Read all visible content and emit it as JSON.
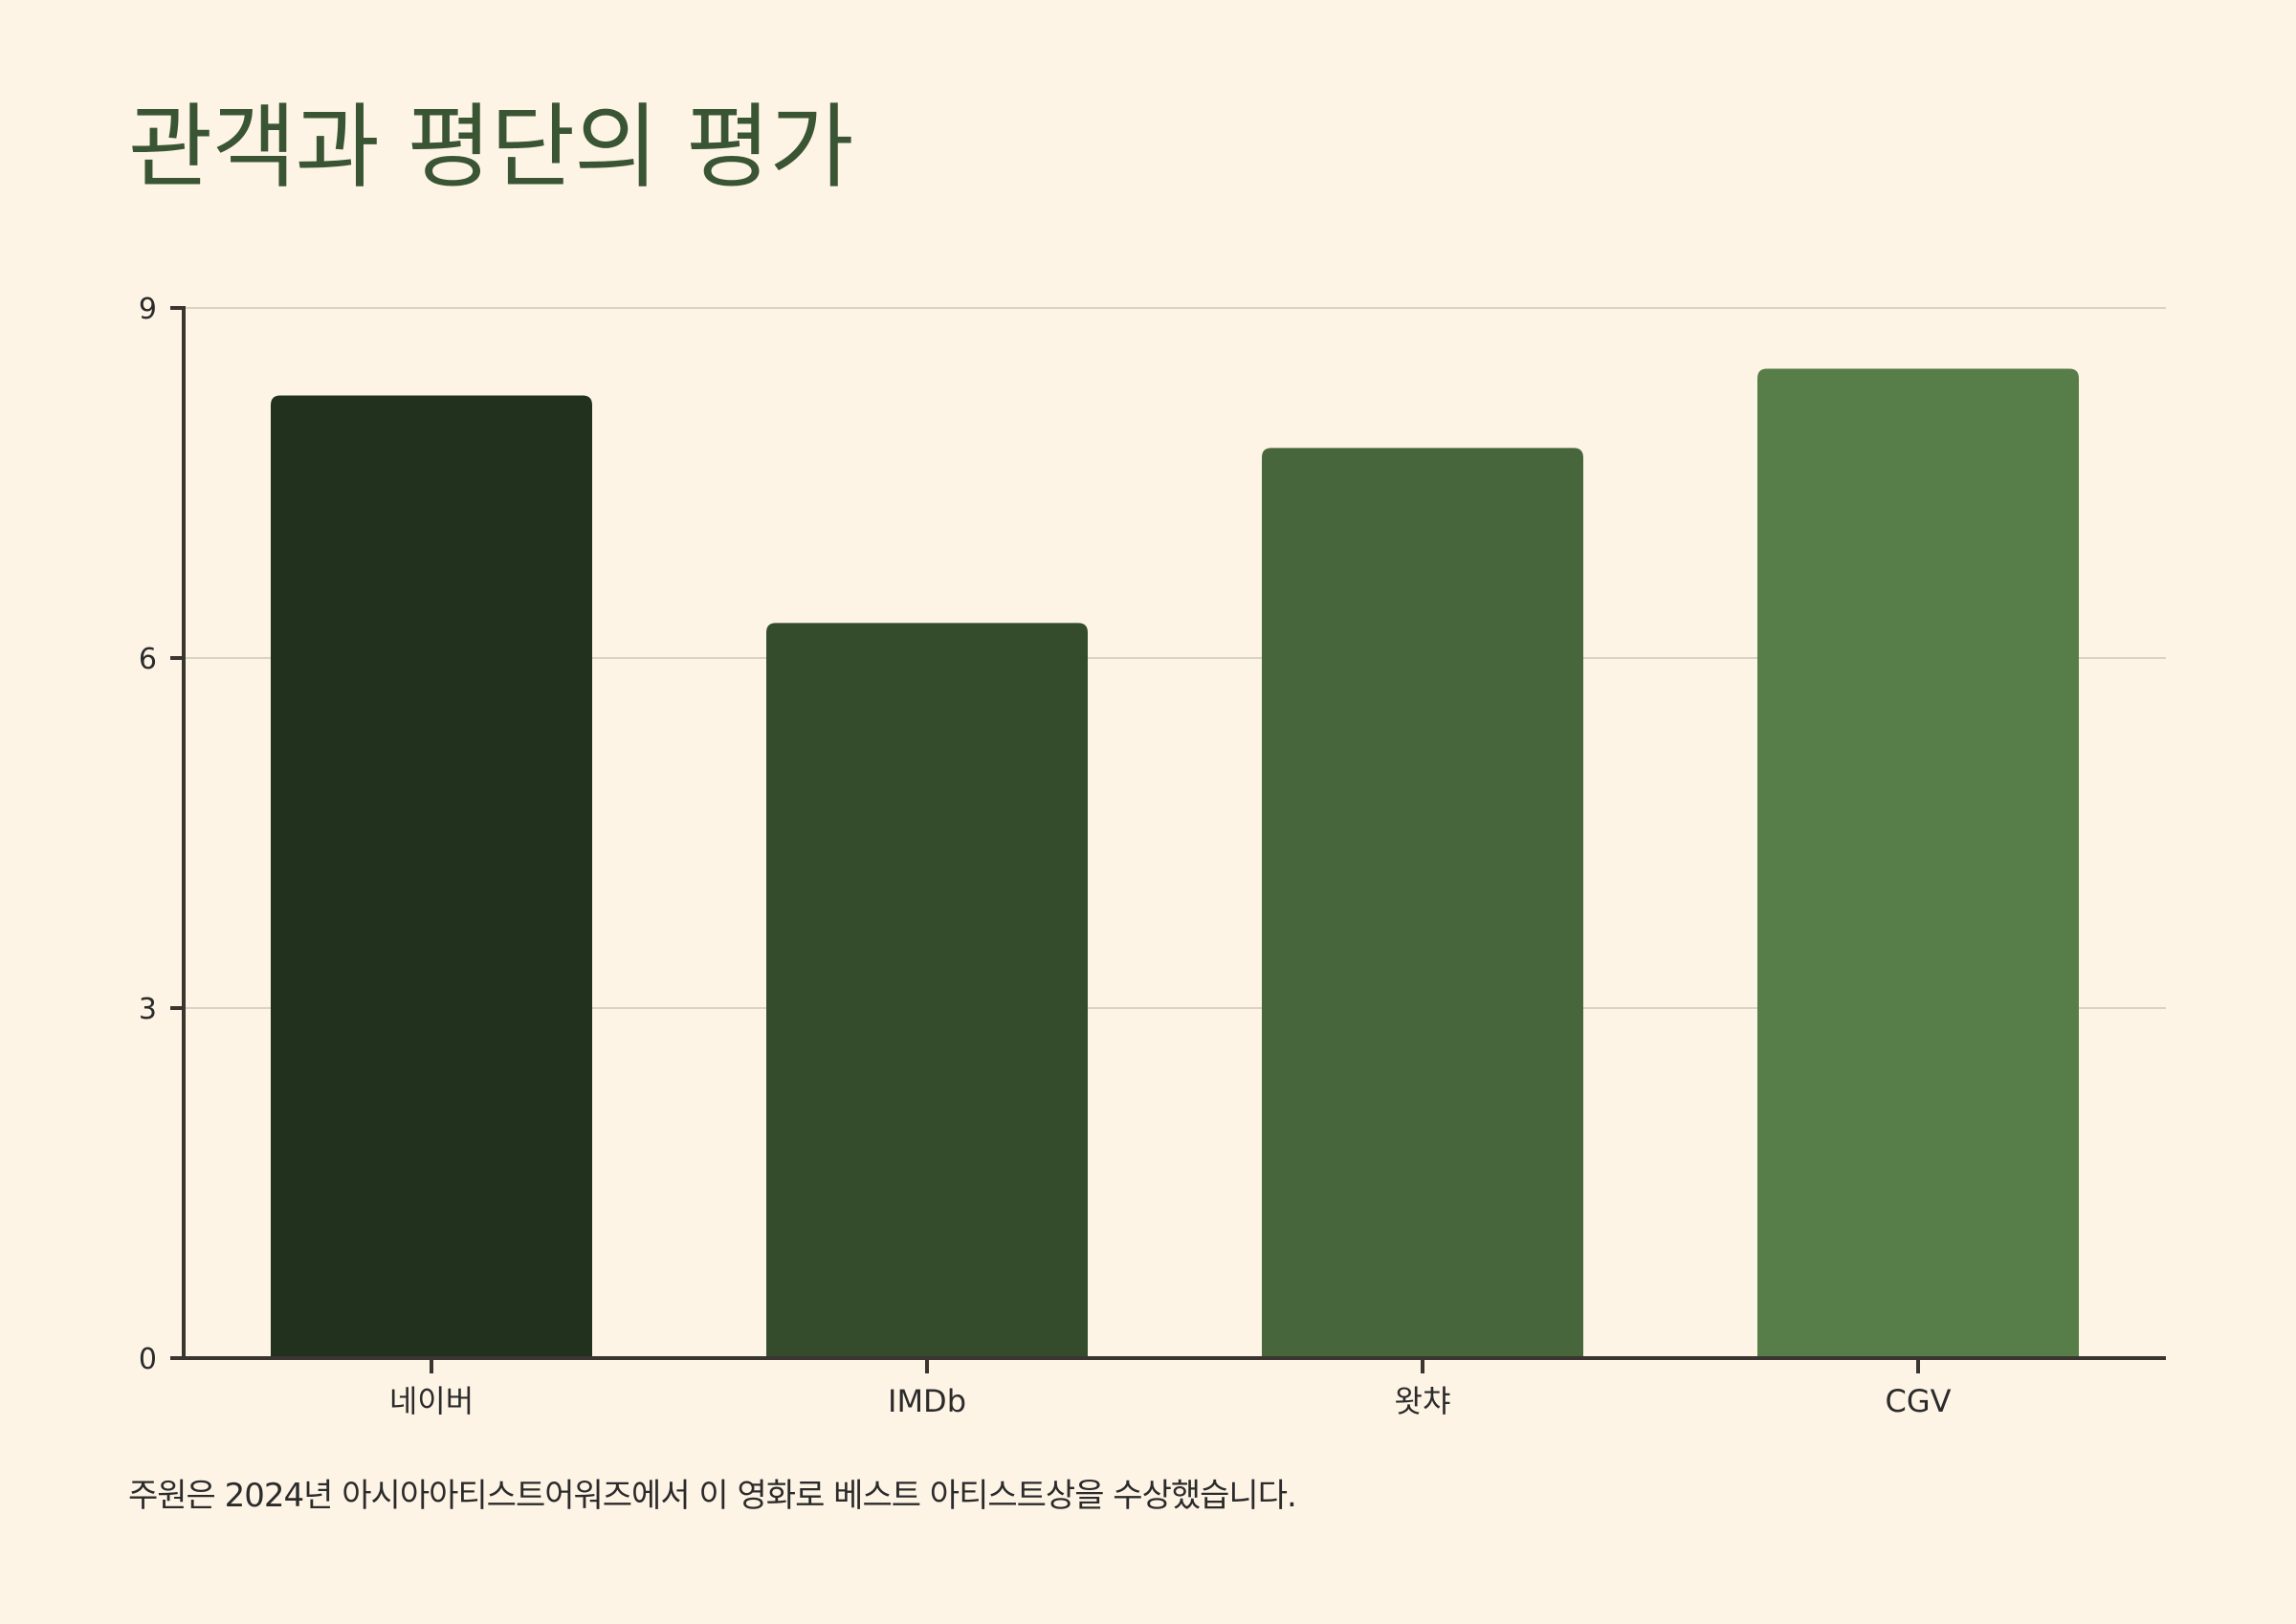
{
  "title": "관객과 평단의 평가",
  "footnote": "주원은 2024년 아시아아티스트어워즈에서 이 영화로 베스트 아티스트상을 수상했습니다.",
  "colors": {
    "background": "#fef4e6",
    "title": "#3a5533",
    "axis": "#3a3530",
    "grid": "#d9d3c4",
    "bars": [
      "#22301e",
      "#354c2c",
      "#47663b",
      "#577e48"
    ]
  },
  "chart_data": {
    "type": "bar",
    "categories": [
      "네이버",
      "IMDb",
      "왓챠",
      "CGV"
    ],
    "values": [
      8.25,
      6.3,
      7.8,
      8.48
    ],
    "title": "관객과 평단의 평가",
    "xlabel": "",
    "ylabel": "",
    "ylim": [
      0,
      9
    ],
    "yticks": [
      0,
      3,
      6,
      9
    ],
    "grid": true
  }
}
